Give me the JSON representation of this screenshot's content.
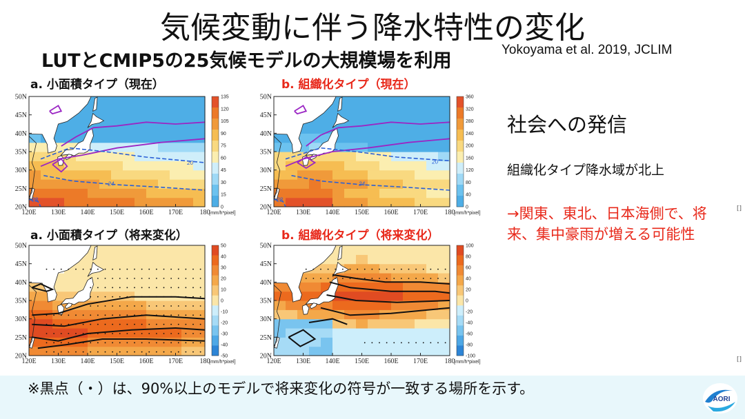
{
  "title": "気候変動に伴う降水特性の変化",
  "subtitle": "LUTとCMIP5の25気候モデルの大規模場を利用",
  "citation": "Yokoyama et al. 2019, JCLIM",
  "panels": {
    "a_present": "a. 小面積タイプ（現在）",
    "b_present": "b. 組織化タイプ（現在）",
    "a_future": "a. 小面積タイプ（将来変化）",
    "b_future": "b. 組織化タイプ（将来変化）"
  },
  "axes": {
    "lat_ticks": [
      "50N",
      "45N",
      "40N",
      "35N",
      "30N",
      "25N",
      "20N"
    ],
    "lon_ticks": [
      "120E",
      "130E",
      "140E",
      "150E",
      "160E",
      "170E",
      "180"
    ],
    "unit": "[mm/h*pixel]"
  },
  "colorbars": {
    "a_present": [
      "135",
      "120",
      "105",
      "90",
      "75",
      "60",
      "45",
      "30",
      "15",
      "0"
    ],
    "b_present": [
      "360",
      "320",
      "280",
      "240",
      "200",
      "160",
      "120",
      "80",
      "40",
      "0"
    ],
    "a_future": [
      "50",
      "40",
      "30",
      "20",
      "10",
      "0",
      "-10",
      "-20",
      "-30",
      "-40",
      "-50"
    ],
    "b_future": [
      "100",
      "80",
      "60",
      "40",
      "20",
      "0",
      "-20",
      "-40",
      "-60",
      "-80",
      "-100"
    ]
  },
  "contour_labels": {
    "a_present": [
      "20",
      "24",
      "28"
    ],
    "b_present": [
      "20",
      "24",
      "28"
    ]
  },
  "sidebar": {
    "heading": "社会への発信",
    "point": "組織化タイプ降水域が北上",
    "conclusion": "→関東、東北、日本海側で、将来、集中豪雨が増える可能性"
  },
  "footnote": "※黒点（・）は、90%以上のモデルで将来変化の符号が一致する場所を示す。",
  "logo_text": "AORI",
  "colors": {
    "accent_red": "#e8281a",
    "sea_blue": "#56b4ec",
    "warm_orange": "#ec6a1e",
    "contour_purple": "#9b26c4",
    "contour_blue": "#2a5fd6",
    "footer_bg": "#e8f7fb"
  }
}
